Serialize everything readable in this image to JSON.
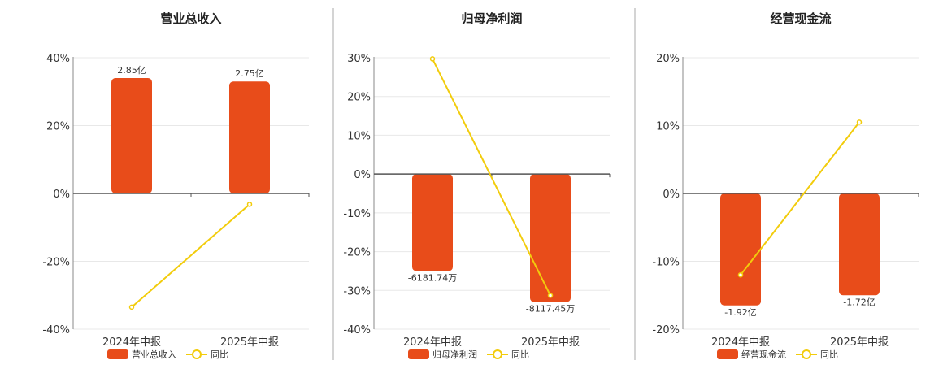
{
  "colors": {
    "bar": "#E84C1A",
    "line": "#F2CC0C",
    "axis": "#333333",
    "grid": "#E8E8E8",
    "separator": "#AAAAAA"
  },
  "legend": {
    "yoy_label": "同比"
  },
  "chart_data": [
    {
      "type": "bar",
      "title": "营业总收入",
      "categories": [
        "2024年中报",
        "2025年中报"
      ],
      "series": [
        {
          "name": "营业总收入",
          "kind": "bar",
          "values": [
            34,
            33
          ],
          "labels": [
            "2.85亿",
            "2.75亿"
          ]
        },
        {
          "name": "同比",
          "kind": "line",
          "values": [
            -33.5,
            -3.2
          ]
        }
      ],
      "ylim": [
        -40,
        40
      ],
      "yticks": [
        40,
        20,
        0,
        -20,
        -40
      ],
      "ytick_labels": [
        "40%",
        "20%",
        "0%",
        "-20%",
        "-40%"
      ],
      "xlabel": "",
      "ylabel": "",
      "grid": true,
      "legend_position": "bottom"
    },
    {
      "type": "bar",
      "title": "归母净利润",
      "categories": [
        "2024年中报",
        "2025年中报"
      ],
      "series": [
        {
          "name": "归母净利润",
          "kind": "bar",
          "values": [
            -25,
            -33
          ],
          "labels": [
            "-6181.74万",
            "-8117.45万"
          ]
        },
        {
          "name": "同比",
          "kind": "line",
          "values": [
            29.7,
            -31.3
          ]
        }
      ],
      "ylim": [
        -40,
        30
      ],
      "yticks": [
        30,
        20,
        10,
        0,
        -10,
        -20,
        -30,
        -40
      ],
      "ytick_labels": [
        "30%",
        "20%",
        "10%",
        "0%",
        "-10%",
        "-20%",
        "-30%",
        "-40%"
      ],
      "xlabel": "",
      "ylabel": "",
      "grid": true,
      "legend_position": "bottom"
    },
    {
      "type": "bar",
      "title": "经营现金流",
      "categories": [
        "2024年中报",
        "2025年中报"
      ],
      "series": [
        {
          "name": "经营现金流",
          "kind": "bar",
          "values": [
            -16.5,
            -15
          ],
          "labels": [
            "-1.92亿",
            "-1.72亿"
          ]
        },
        {
          "name": "同比",
          "kind": "line",
          "values": [
            -12,
            10.5
          ]
        }
      ],
      "ylim": [
        -20,
        20
      ],
      "yticks": [
        20,
        10,
        0,
        -10,
        -20
      ],
      "ytick_labels": [
        "20%",
        "10%",
        "0%",
        "-10%",
        "-20%"
      ],
      "xlabel": "",
      "ylabel": "",
      "grid": true,
      "legend_position": "bottom"
    }
  ]
}
